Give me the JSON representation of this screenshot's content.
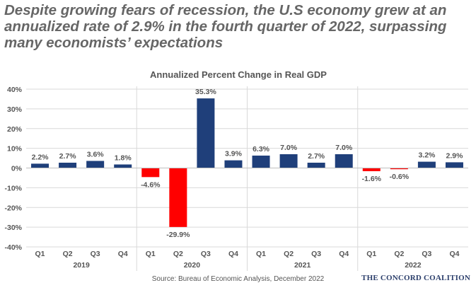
{
  "headline": "Despite growing fears of recession, the U.S economy grew at an annualized rate of 2.9% in the fourth quarter of 2022, surpassing many economists’ expectations",
  "source": "Source: Bureau of Economic Analysis, December 2022",
  "brand": "THE CONCORD COALITION",
  "chart_data": {
    "type": "bar",
    "title": "Annualized Percent Change in Real GDP",
    "xlabel": "",
    "ylabel": "",
    "ylim": [
      -40,
      40
    ],
    "yticks": [
      40,
      30,
      20,
      10,
      0,
      -10,
      -20,
      -30,
      -40
    ],
    "ytick_labels": [
      "40%",
      "30%",
      "20%",
      "10%",
      "0%",
      "-10%",
      "-20%",
      "-30%",
      "-40%"
    ],
    "grid": true,
    "legend": "none",
    "colors": {
      "positive": "#1f3f7a",
      "negative": "#ff0000"
    },
    "groups": [
      {
        "year": "2019",
        "quarters": [
          "Q1",
          "Q2",
          "Q3",
          "Q4"
        ],
        "values": [
          2.2,
          2.7,
          3.6,
          1.8
        ],
        "labels": [
          "2.2%",
          "2.7%",
          "3.6%",
          "1.8%"
        ]
      },
      {
        "year": "2020",
        "quarters": [
          "Q1",
          "Q2",
          "Q3",
          "Q4"
        ],
        "values": [
          -4.6,
          -29.9,
          35.3,
          3.9
        ],
        "labels": [
          "-4.6%",
          "-29.9%",
          "35.3%",
          "3.9%"
        ]
      },
      {
        "year": "2021",
        "quarters": [
          "Q1",
          "Q2",
          "Q3",
          "Q4"
        ],
        "values": [
          6.3,
          7.0,
          2.7,
          7.0
        ],
        "labels": [
          "6.3%",
          "7.0%",
          "2.7%",
          "7.0%"
        ]
      },
      {
        "year": "2022",
        "quarters": [
          "Q1",
          "Q2",
          "Q3",
          "Q4"
        ],
        "values": [
          -1.6,
          -0.6,
          3.2,
          2.9
        ],
        "labels": [
          "-1.6%",
          "-0.6%",
          "3.2%",
          "2.9%"
        ]
      }
    ]
  }
}
